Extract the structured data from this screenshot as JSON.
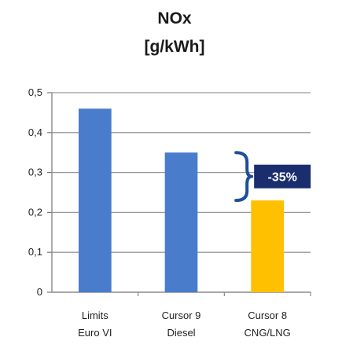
{
  "chart_data": {
    "type": "bar",
    "title": "NOx",
    "subtitle": "[g/kWh]",
    "categories": [
      [
        "Limits",
        "Euro VI"
      ],
      [
        "Cursor 9",
        "Diesel"
      ],
      [
        "Cursor 8",
        "CNG/LNG"
      ]
    ],
    "values": [
      0.46,
      0.35,
      0.23
    ],
    "bar_colors": [
      "#4a7ccc",
      "#4a7ccc",
      "#ffc000"
    ],
    "ylim": [
      0,
      0.5
    ],
    "yticks": [
      0,
      0.1,
      0.2,
      0.3,
      0.4,
      0.5
    ],
    "ytick_labels": [
      "0",
      "0,1",
      "0,2",
      "0,3",
      "0,4",
      "0,5"
    ],
    "grid": true,
    "xlabel": "",
    "ylabel": "",
    "annotation": {
      "text": "-35%",
      "from_value": 0.35,
      "to_value": 0.23,
      "badge_color": "#1a2e6e",
      "brace_color": "#1f4f9a"
    }
  }
}
